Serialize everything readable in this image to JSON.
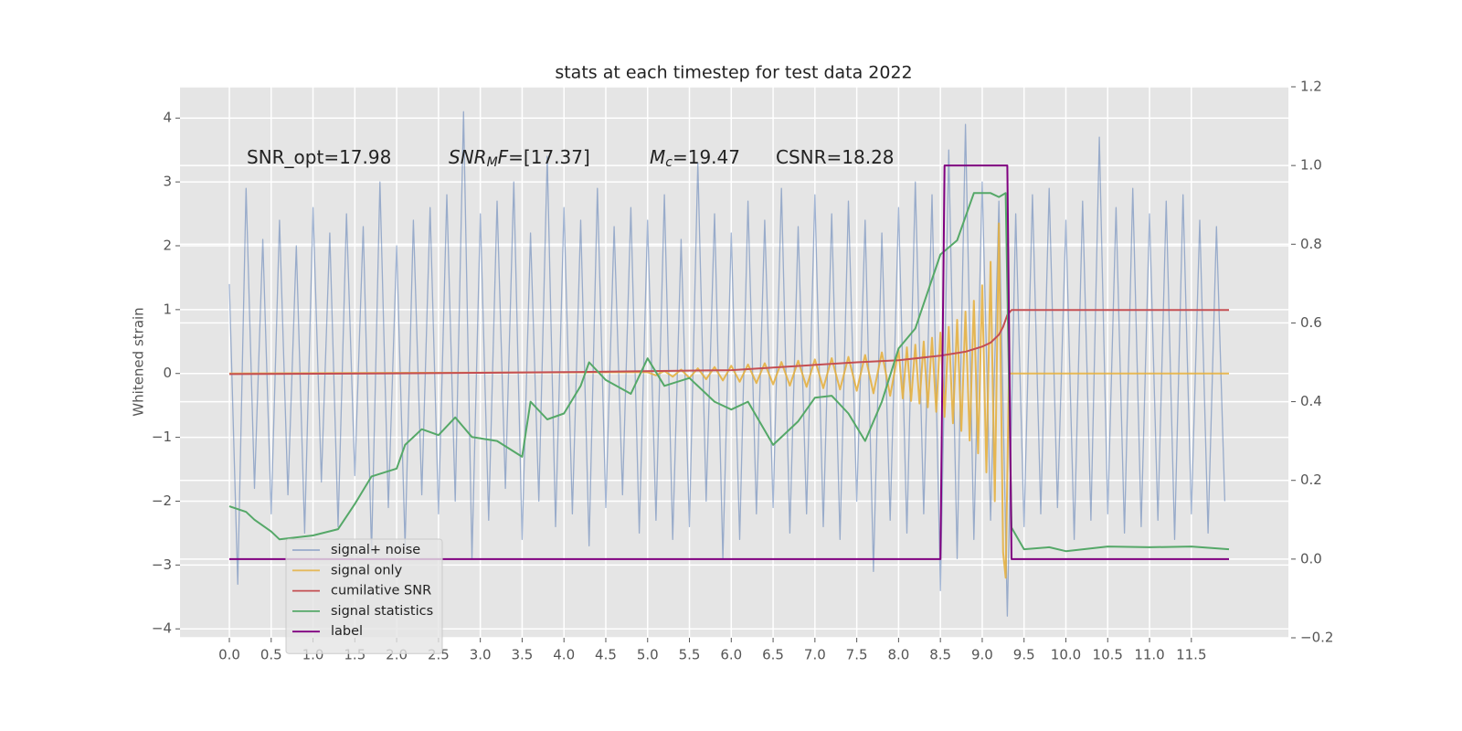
{
  "chart_data": {
    "type": "line",
    "title": "stats at each timestep for test data 2022",
    "ylabel": "Whitened strain",
    "xlim": [
      -0.59,
      12.66
    ],
    "ylim": [
      -4.14,
      4.49
    ],
    "y2lim": [
      -0.2,
      1.2
    ],
    "grid": true,
    "legend": "lower left",
    "xticks": [
      {
        "value": 0,
        "label": "0.0"
      },
      0.5,
      {
        "value": 1,
        "label": "1.0"
      },
      1.5,
      {
        "value": 2,
        "label": "2.0"
      },
      2.5,
      {
        "value": 3,
        "label": "3.0"
      },
      3.5,
      {
        "value": 4,
        "label": "4.0"
      },
      4.5,
      {
        "value": 5,
        "label": "5.0"
      },
      5.5,
      {
        "value": 6,
        "label": "6.0"
      },
      6.5,
      {
        "value": 7,
        "label": "7.0"
      },
      7.5,
      {
        "value": 8,
        "label": "8.0"
      },
      8.5,
      {
        "value": 9,
        "label": "9.0"
      },
      9.5,
      {
        "value": 10,
        "label": "10.0"
      },
      10.5,
      {
        "value": 11,
        "label": "11.0"
      },
      11.5
    ],
    "yticks": [
      {
        "value": -4,
        "label": "−4"
      },
      {
        "value": -3,
        "label": "−3"
      },
      {
        "value": -2,
        "label": "−2"
      },
      {
        "value": -1,
        "label": "−1"
      },
      0,
      1,
      2,
      3,
      4
    ],
    "y2ticks": [
      {
        "value": -0.2,
        "label": "−0.2"
      },
      {
        "value": 0,
        "label": "0.0"
      },
      0.2,
      0.4,
      0.6,
      0.8,
      {
        "value": 1,
        "label": "1.0"
      },
      1.2
    ],
    "annotations": [
      [
        {
          "text": "SNR_opt=17.98"
        }
      ],
      [
        {
          "text": "SNR",
          "italic": true
        },
        {
          "text": "M",
          "italic": true,
          "sub": true
        },
        {
          "text": "F",
          "italic": true
        },
        {
          "text": "=[17.37]"
        }
      ],
      [
        {
          "text": "M",
          "italic": true
        },
        {
          "text": "c",
          "italic": true,
          "sub": true
        },
        {
          "text": "=19.47"
        }
      ],
      [
        {
          "text": "CSNR=18.28"
        }
      ]
    ],
    "series": [
      {
        "name": "signal+ noise",
        "color": "#4c72b0",
        "opacity": 0.5,
        "axis": "y",
        "x": [
          0.0,
          0.1,
          0.2,
          0.3,
          0.4,
          0.5,
          0.6,
          0.7,
          0.8,
          0.9,
          1.0,
          1.1,
          1.2,
          1.3,
          1.4,
          1.5,
          1.6,
          1.7,
          1.8,
          1.9,
          2.0,
          2.1,
          2.2,
          2.3,
          2.4,
          2.5,
          2.6,
          2.7,
          2.8,
          2.9,
          3.0,
          3.1,
          3.2,
          3.3,
          3.4,
          3.5,
          3.6,
          3.7,
          3.8,
          3.9,
          4.0,
          4.1,
          4.2,
          4.3,
          4.4,
          4.5,
          4.6,
          4.7,
          4.8,
          4.9,
          5.0,
          5.1,
          5.2,
          5.3,
          5.4,
          5.5,
          5.6,
          5.7,
          5.8,
          5.9,
          6.0,
          6.1,
          6.2,
          6.3,
          6.4,
          6.5,
          6.6,
          6.7,
          6.8,
          6.9,
          7.0,
          7.1,
          7.2,
          7.3,
          7.4,
          7.5,
          7.6,
          7.7,
          7.8,
          7.9,
          8.0,
          8.1,
          8.2,
          8.3,
          8.4,
          8.5,
          8.6,
          8.7,
          8.8,
          8.9,
          9.0,
          9.1,
          9.2,
          9.3,
          9.4,
          9.5,
          9.6,
          9.7,
          9.8,
          9.9,
          10.0,
          10.1,
          10.2,
          10.3,
          10.4,
          10.5,
          10.6,
          10.7,
          10.8,
          10.9,
          11.0,
          11.1,
          11.2,
          11.3,
          11.4,
          11.5,
          11.6,
          11.7,
          11.8,
          11.9
        ],
        "values": [
          1.4,
          -3.3,
          2.9,
          -1.8,
          2.1,
          -2.2,
          2.4,
          -1.9,
          2.0,
          -2.5,
          2.6,
          -1.7,
          2.2,
          -2.4,
          2.5,
          -1.6,
          2.3,
          -2.8,
          3.0,
          -2.1,
          2.0,
          -2.7,
          2.4,
          -1.9,
          2.6,
          -2.2,
          2.8,
          -2.0,
          4.1,
          -2.9,
          2.5,
          -2.3,
          2.7,
          -1.8,
          3.0,
          -2.6,
          2.2,
          -2.0,
          3.4,
          -2.4,
          2.6,
          -2.2,
          2.4,
          -2.7,
          2.9,
          -2.1,
          2.3,
          -1.9,
          2.6,
          -2.5,
          2.4,
          -2.3,
          2.8,
          -2.6,
          2.1,
          -2.4,
          3.3,
          -2.0,
          2.5,
          -2.9,
          2.2,
          -2.6,
          2.7,
          -2.2,
          2.4,
          -2.1,
          2.9,
          -2.5,
          2.3,
          -2.2,
          2.8,
          -2.4,
          2.5,
          -2.6,
          2.7,
          -2.0,
          2.4,
          -3.1,
          2.2,
          -2.3,
          2.6,
          -2.5,
          3.0,
          -2.2,
          2.8,
          -3.4,
          3.5,
          -2.9,
          3.9,
          -2.6,
          3.0,
          -2.3,
          2.7,
          -3.8,
          2.5,
          -2.4,
          2.8,
          -2.2,
          2.9,
          -2.1,
          2.4,
          -2.6,
          2.7,
          -2.3,
          3.7,
          -2.2,
          2.6,
          -2.5,
          2.9,
          -2.4,
          2.5,
          -2.3,
          2.7,
          -2.6,
          2.8,
          -2.2,
          2.4,
          -2.5,
          2.3,
          -2.0
        ]
      },
      {
        "name": "signal only",
        "color": "#e5ae38",
        "opacity": 0.85,
        "axis": "y",
        "x": [
          0,
          5.0,
          5.1,
          5.2,
          5.3,
          5.4,
          5.5,
          5.6,
          5.7,
          5.8,
          5.9,
          6.0,
          6.1,
          6.2,
          6.3,
          6.4,
          6.5,
          6.6,
          6.7,
          6.8,
          6.9,
          7.0,
          7.1,
          7.2,
          7.3,
          7.4,
          7.5,
          7.6,
          7.7,
          7.8,
          7.9,
          8.0,
          8.05,
          8.1,
          8.15,
          8.2,
          8.25,
          8.3,
          8.35,
          8.4,
          8.45,
          8.5,
          8.55,
          8.6,
          8.65,
          8.7,
          8.75,
          8.8,
          8.85,
          8.9,
          8.95,
          9.0,
          9.05,
          9.1,
          9.15,
          9.2,
          9.25,
          9.28,
          9.32,
          11.95
        ],
        "values": [
          0,
          0.02,
          -0.03,
          0.04,
          -0.05,
          0.06,
          -0.07,
          0.08,
          -0.09,
          0.1,
          -0.11,
          0.12,
          -0.13,
          0.14,
          -0.15,
          0.16,
          -0.17,
          0.18,
          -0.19,
          0.2,
          -0.21,
          0.22,
          -0.23,
          0.24,
          -0.25,
          0.26,
          -0.27,
          0.29,
          -0.31,
          0.33,
          -0.35,
          0.37,
          -0.39,
          0.41,
          -0.43,
          0.45,
          -0.47,
          0.5,
          -0.53,
          0.56,
          -0.6,
          0.64,
          -0.68,
          0.73,
          -0.78,
          0.84,
          -0.9,
          0.97,
          -1.05,
          1.14,
          -1.25,
          1.38,
          -1.55,
          1.75,
          -2.0,
          2.35,
          -2.8,
          -3.2,
          0,
          0
        ]
      },
      {
        "name": "cumilative SNR",
        "color": "#c44e52",
        "opacity": 1,
        "axis": "y2",
        "x": [
          0,
          2.0,
          4.0,
          6.0,
          7.5,
          8.0,
          8.5,
          8.8,
          9.0,
          9.1,
          9.2,
          9.25,
          9.3,
          9.35,
          11.95
        ],
        "values": [
          0.47,
          0.472,
          0.475,
          0.48,
          0.5,
          0.505,
          0.517,
          0.527,
          0.54,
          0.55,
          0.57,
          0.59,
          0.62,
          0.633,
          0.633
        ]
      },
      {
        "name": "signal statistics",
        "color": "#55a868",
        "opacity": 1,
        "axis": "y2",
        "x": [
          0,
          0.2,
          0.3,
          0.5,
          0.6,
          1.0,
          1.3,
          1.5,
          1.7,
          2.0,
          2.1,
          2.3,
          2.5,
          2.7,
          2.9,
          3.2,
          3.5,
          3.6,
          3.8,
          4.0,
          4.2,
          4.3,
          4.5,
          4.8,
          5.0,
          5.2,
          5.5,
          5.8,
          6.0,
          6.2,
          6.5,
          6.8,
          7.0,
          7.2,
          7.4,
          7.6,
          7.8,
          8.0,
          8.2,
          8.5,
          8.7,
          8.9,
          9.1,
          9.2,
          9.28,
          9.35,
          9.5,
          9.8,
          10.0,
          10.5,
          11.0,
          11.5,
          11.95
        ],
        "values": [
          0.134,
          0.12,
          0.1,
          0.07,
          0.05,
          0.06,
          0.076,
          0.14,
          0.21,
          0.23,
          0.29,
          0.33,
          0.315,
          0.36,
          0.31,
          0.3,
          0.26,
          0.4,
          0.355,
          0.37,
          0.44,
          0.5,
          0.455,
          0.42,
          0.51,
          0.44,
          0.46,
          0.4,
          0.38,
          0.4,
          0.29,
          0.35,
          0.41,
          0.415,
          0.37,
          0.3,
          0.4,
          0.535,
          0.586,
          0.774,
          0.81,
          0.93,
          0.93,
          0.92,
          0.93,
          0.08,
          0.025,
          0.03,
          0.02,
          0.032,
          0.03,
          0.032,
          0.025
        ]
      },
      {
        "name": "label",
        "color": "#800080",
        "opacity": 1,
        "axis": "y2",
        "x": [
          0,
          8.5,
          8.55,
          9.3,
          9.35,
          11.95
        ],
        "values": [
          0,
          0,
          1,
          1,
          0,
          0
        ]
      }
    ]
  }
}
